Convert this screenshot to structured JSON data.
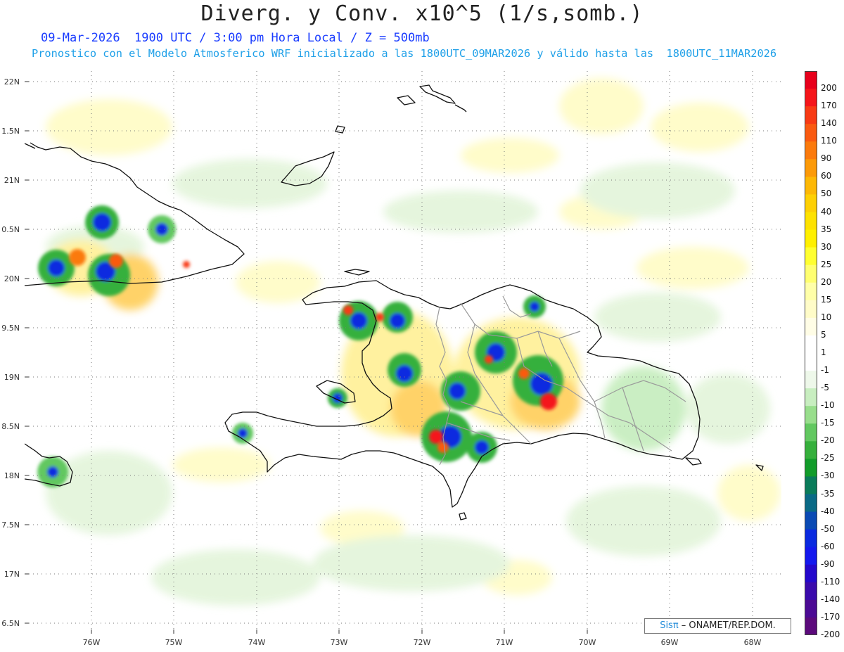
{
  "header": {
    "title": "Diverg. y Conv. x10^5 (1/s,somb.)",
    "subtitle_line1": "09-Mar-2026  1900 UTC / 3:00 pm Hora Local / Z = 500mb",
    "subtitle_line2": "Pronostico con el Modelo Atmosferico WRF inicializado a las 1800UTC_09MAR2026 y válido hasta las  1800UTC_11MAR2026"
  },
  "map": {
    "lat_labels": [
      "22N",
      "1.5N",
      "21N",
      "0.5N",
      "20N",
      "9.5N",
      "19N",
      "8.5N",
      "18N",
      "7.5N",
      "17N",
      "6.5N"
    ],
    "lon_labels": [
      "76W",
      "75W",
      "74W",
      "73W",
      "72W",
      "71W",
      "70W",
      "69W",
      "68W"
    ],
    "lat_range": [
      16.5,
      22.0
    ],
    "lon_range": [
      -76.8,
      -67.6
    ],
    "grid": "dotted"
  },
  "colorbar": {
    "levels": [
      "200",
      "170",
      "140",
      "110",
      "90",
      "60",
      "50",
      "40",
      "35",
      "30",
      "25",
      "20",
      "15",
      "10",
      "5",
      "1",
      "-1",
      "-5",
      "-10",
      "-15",
      "-20",
      "-25",
      "-30",
      "-35",
      "-40",
      "-50",
      "-60",
      "-90",
      "-110",
      "-140",
      "-170",
      "-200"
    ],
    "colors": [
      "#e8001c",
      "#f5151a",
      "#f83a14",
      "#fa5a10",
      "#fb7a0c",
      "#fc9a08",
      "#fdb805",
      "#fed003",
      "#fee200",
      "#fff000",
      "#ffff30",
      "#ffff70",
      "#ffffa8",
      "#fffcc8",
      "#fffde6",
      "#ffffff",
      "#ffffff",
      "#eef8ea",
      "#c8eec0",
      "#98de8c",
      "#62c860",
      "#36b03c",
      "#129c2a",
      "#0a7c5a",
      "#0a6a86",
      "#0a4ab4",
      "#0a2ae0",
      "#1418ee",
      "#2408cc",
      "#3a0aac",
      "#4c0a94",
      "#5c0a7c"
    ]
  },
  "credit": {
    "brand": "Sisπ",
    "text": " – ONAMET/REP.DOM."
  }
}
